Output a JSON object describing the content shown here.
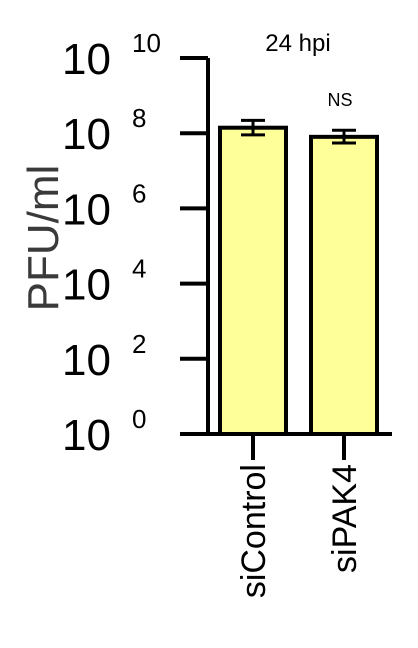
{
  "chart_data": {
    "type": "bar",
    "title": "24 hpi",
    "ylabel": "PFU/ml",
    "yscale": "log10",
    "ylim": [
      1,
      10000000000
    ],
    "yticks": [
      {
        "value": 1,
        "base": "10",
        "exp": "0"
      },
      {
        "value": 100,
        "base": "10",
        "exp": "2"
      },
      {
        "value": 10000,
        "base": "10",
        "exp": "4"
      },
      {
        "value": 1000000,
        "base": "10",
        "exp": "6"
      },
      {
        "value": 100000000,
        "base": "10",
        "exp": "8"
      },
      {
        "value": 10000000000,
        "base": "10",
        "exp": "10"
      }
    ],
    "categories": [
      "siControl",
      "siPAK4"
    ],
    "values": [
      140000000,
      80000000
    ],
    "error_low": [
      90000000,
      55000000
    ],
    "error_high": [
      220000000,
      120000000
    ],
    "annotation": "NS",
    "bar_color": "#ffff99",
    "edge_color": "#000000"
  }
}
